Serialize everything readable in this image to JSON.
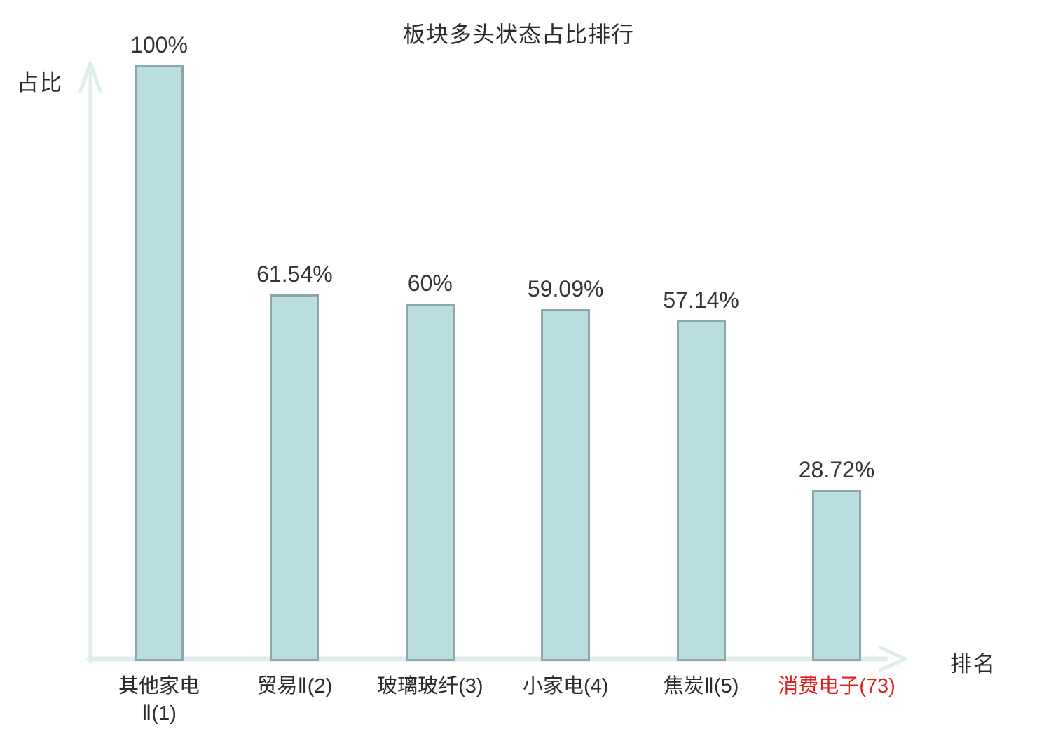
{
  "chart": {
    "title": "板块多头状态占比排行",
    "y_axis_label": "占比",
    "x_axis_label": "排名",
    "colors": {
      "bar_fill": "#badde2",
      "bar_border": "#8ca6ac",
      "axis": "#dfeeea",
      "text": "#2b2b2b",
      "value_text": "#333333",
      "highlight": "#e01f1f"
    }
  },
  "chart_data": {
    "type": "bar",
    "title": "板块多头状态占比排行",
    "xlabel": "排名",
    "ylabel": "占比",
    "ylim": [
      0,
      100
    ],
    "grid": false,
    "legend": null,
    "categories": [
      "其他家电Ⅱ(1)",
      "贸易Ⅱ(2)",
      "玻璃玻纤(3)",
      "小家电(4)",
      "焦炭Ⅱ(5)",
      "消费电子(73)"
    ],
    "category_display": [
      "其他家电\nⅡ(1)",
      "贸易Ⅱ(2)",
      "玻璃玻纤(3)",
      "小家电(4)",
      "焦炭Ⅱ(5)",
      "消费电子(73)"
    ],
    "values": [
      100,
      61.54,
      60,
      59.09,
      57.14,
      28.72
    ],
    "value_labels": [
      "100%",
      "61.54%",
      "60%",
      "59.09%",
      "57.14%",
      "28.72%"
    ],
    "highlighted_category_index": 5
  }
}
